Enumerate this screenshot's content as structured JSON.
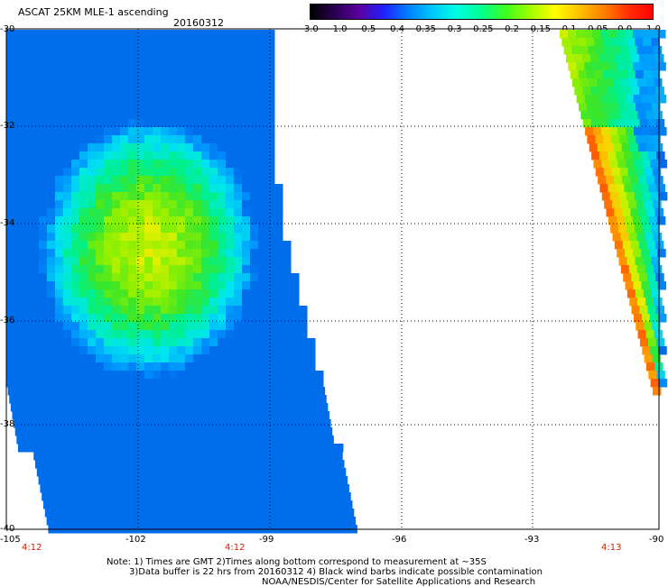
{
  "header": {
    "title": "ASCAT 25KM MLE-1 ascending",
    "date": "20160312"
  },
  "colorbar": {
    "ticks": [
      "-3.0",
      "-1.0",
      "-0.5",
      "-0.4",
      "-0.35",
      "-0.3",
      "-0.25",
      "-0.2",
      "-0.15",
      "-0.1",
      "-0.05",
      "0.0",
      "1.0"
    ],
    "colors": [
      "#000000",
      "#2a0050",
      "#5a00a0",
      "#2020ff",
      "#0080ff",
      "#00c8ff",
      "#00ffe0",
      "#00ff90",
      "#40ff20",
      "#a0ff00",
      "#ffff00",
      "#ffc000",
      "#ff8000",
      "#ff3000",
      "#ff0000"
    ]
  },
  "axes": {
    "y_labels": [
      "-30",
      "-32",
      "-34",
      "-36",
      "-38",
      "-40"
    ],
    "x_labels": [
      "-105",
      "-102",
      "-99",
      "-96",
      "-93",
      "-90"
    ],
    "time_labels": [
      "4:12",
      "4:12",
      "4:13"
    ]
  },
  "notes": {
    "line1": "Note: 1) Times are GMT 2)Times along bottom correspond to measurement at ~35S",
    "line2": "3)Data buffer is 22 hrs from 20160312 4) Black wind barbs indicate possible contamination",
    "line3": "NOAA/NESDIS/Center for Satellite Applications and Research"
  }
}
